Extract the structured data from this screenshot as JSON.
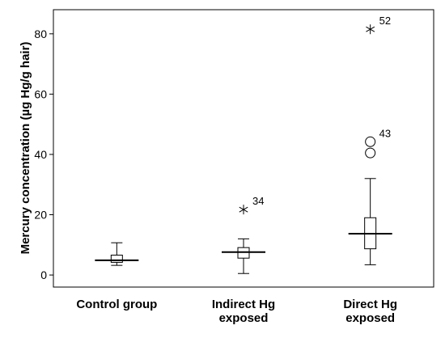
{
  "chart_data": {
    "type": "boxplot",
    "title": "",
    "ylabel": "Mercury concentration (µg Hg/g hair)",
    "xlabel": "",
    "ylim": [
      -4,
      88
    ],
    "yticks": [
      0,
      20,
      40,
      60,
      80
    ],
    "grid": false,
    "categories": [
      {
        "lines": [
          "Control group"
        ]
      },
      {
        "lines": [
          "Indirect Hg",
          "exposed"
        ]
      },
      {
        "lines": [
          "Direct Hg",
          "exposed"
        ]
      }
    ],
    "boxes": [
      {
        "whisker_low": 3.2,
        "q1": 4.2,
        "median": 4.9,
        "q3": 6.6,
        "whisker_high": 10.7,
        "outliers": []
      },
      {
        "whisker_low": 0.5,
        "q1": 5.6,
        "median": 7.6,
        "q3": 9.1,
        "whisker_high": 12.0,
        "outliers": [
          {
            "value": 21.7,
            "marker": "star",
            "label": "34"
          }
        ]
      },
      {
        "whisker_low": 3.4,
        "q1": 8.7,
        "median": 13.7,
        "q3": 19.0,
        "whisker_high": 32.0,
        "outliers": [
          {
            "value": 44.2,
            "marker": "circle",
            "label": "43"
          },
          {
            "value": 40.5,
            "marker": "circle",
            "label": ""
          },
          {
            "value": 81.5,
            "marker": "star",
            "label": "52"
          }
        ]
      }
    ]
  }
}
